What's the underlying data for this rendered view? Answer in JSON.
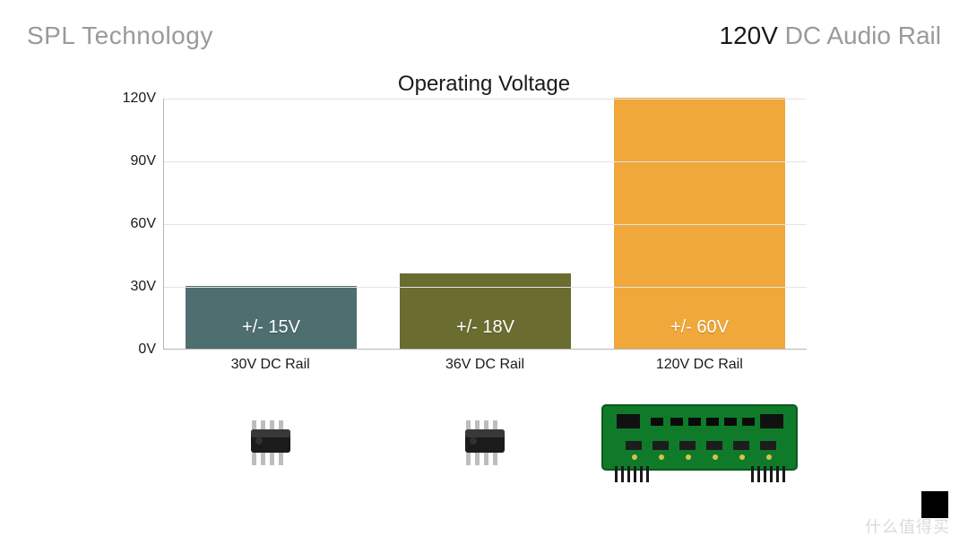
{
  "header": {
    "left": "SPL Technology",
    "right_bold": "120V",
    "right_light": " DC Audio Rail"
  },
  "chart": {
    "type": "bar",
    "title": "Operating Voltage",
    "ylim": [
      0,
      120
    ],
    "ytick_step": 30,
    "ytick_suffix": "V",
    "unit": "V",
    "grid_color": "#e4e4e4",
    "axis_color": "#b5b5b5",
    "background_color": "#ffffff",
    "title_fontsize": 24,
    "tick_fontsize": 16,
    "barlabel_fontsize": 20,
    "barlabel_color": "#ffffff",
    "bar_width": 0.8,
    "bars": [
      {
        "value": 30,
        "label": "+/- 15V",
        "xlabel": "30V DC Rail",
        "color": "#4e6e6f",
        "icon": "chip"
      },
      {
        "value": 36,
        "label": "+/- 18V",
        "xlabel": "36V DC Rail",
        "color": "#6a6d2f",
        "icon": "chip"
      },
      {
        "value": 120,
        "label": "+/- 60V",
        "xlabel": "120V DC Rail",
        "color": "#f0a83a",
        "icon": "pcb"
      }
    ]
  },
  "watermark": "什么值得买"
}
